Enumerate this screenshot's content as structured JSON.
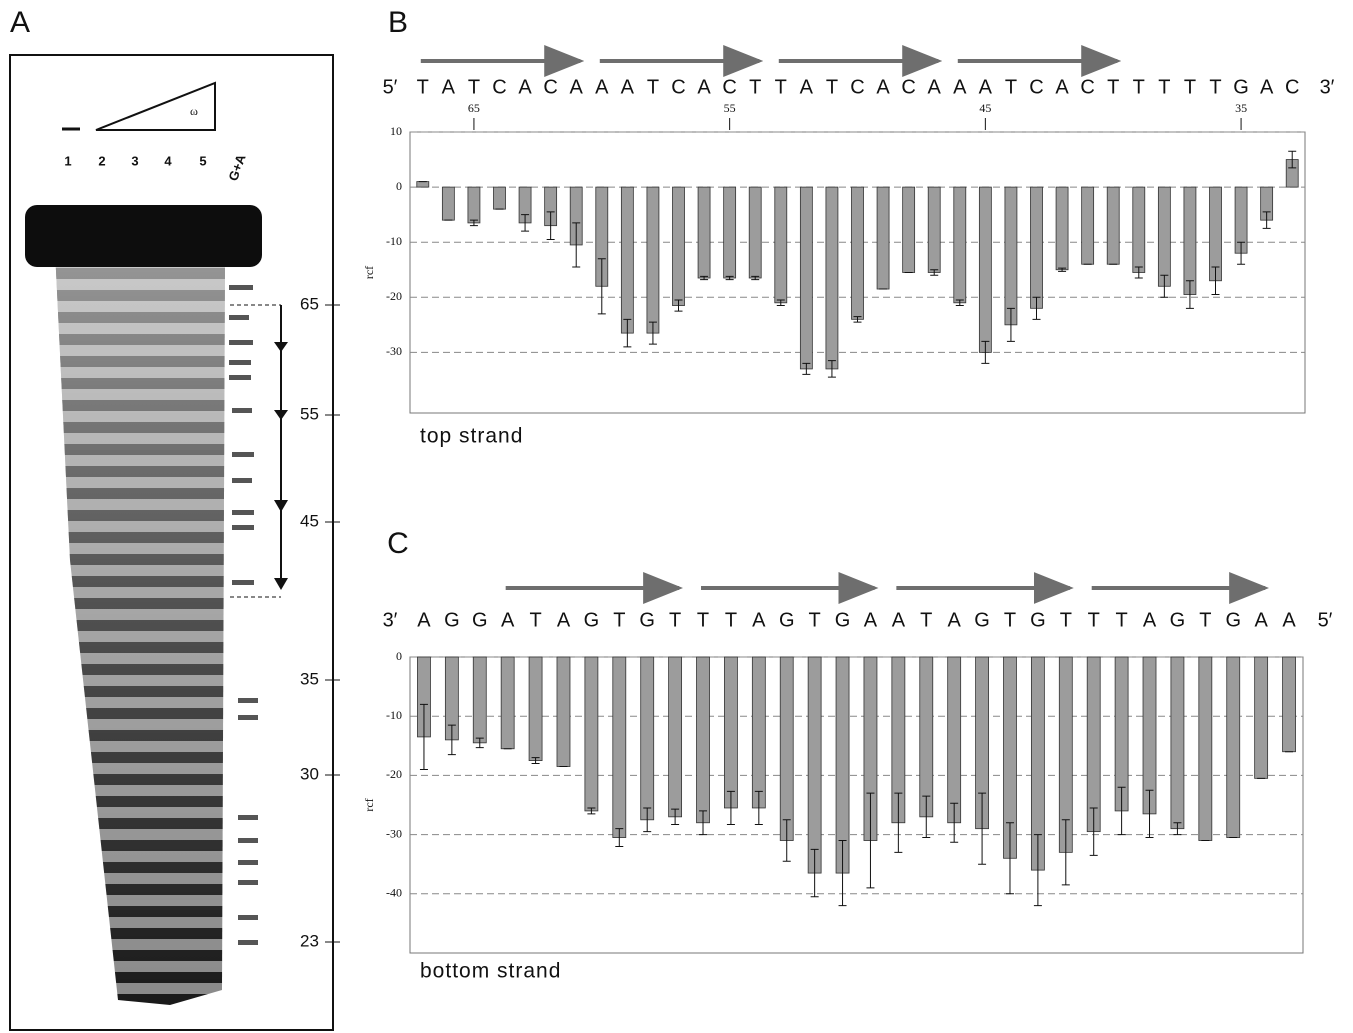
{
  "gel": {
    "panel": "A",
    "lanes": [
      "1",
      "2",
      "3",
      "4",
      "5",
      "G+A"
    ],
    "omega": "ω",
    "markers": [
      "65",
      "55",
      "45",
      "35",
      "30",
      "23"
    ]
  },
  "chart_data": [
    {
      "type": "bar",
      "panel": "B",
      "title": "top strand",
      "y_label": "rcf",
      "ends": [
        "5′",
        "3′"
      ],
      "categories": [
        "T",
        "A",
        "T",
        "C",
        "A",
        "C",
        "A",
        "A",
        "A",
        "T",
        "C",
        "A",
        "C",
        "T",
        "T",
        "A",
        "T",
        "C",
        "A",
        "C",
        "A",
        "A",
        "A",
        "T",
        "C",
        "A",
        "C",
        "T",
        "T",
        "T",
        "T",
        "T",
        "G",
        "A",
        "C"
      ],
      "x": [
        67,
        66,
        65,
        64,
        63,
        62,
        61,
        60,
        59,
        58,
        57,
        56,
        55,
        54,
        53,
        52,
        51,
        50,
        49,
        48,
        47,
        46,
        45,
        44,
        43,
        42,
        41,
        40,
        39,
        38,
        37,
        36,
        35,
        34,
        33
      ],
      "xlim": [
        67.5,
        32.5
      ],
      "xticks": [
        65,
        55,
        45,
        35
      ],
      "values": [
        1,
        -6,
        -6.5,
        -4,
        -6.5,
        -7,
        -10.5,
        -18,
        -26.5,
        -26.5,
        -21.5,
        -16.5,
        -16.5,
        -16.5,
        -21,
        -33,
        -33,
        -24,
        -18.5,
        -15.5,
        -15.5,
        -21,
        -30,
        -25,
        -22,
        -15,
        -14,
        -14,
        -15.5,
        -18,
        -19.5,
        -17,
        -12,
        -6,
        5
      ],
      "errors": [
        0,
        0,
        0.5,
        0,
        1.5,
        2.5,
        4,
        5,
        2.5,
        2,
        1,
        0.3,
        0.3,
        0.3,
        0.5,
        1,
        1.5,
        0.5,
        0,
        0,
        0.5,
        0.5,
        2,
        3,
        2,
        0.3,
        0,
        0,
        1,
        2,
        2.5,
        2.5,
        2,
        1.5,
        1.5
      ],
      "color": "#9c9c9c",
      "ylim": [
        -41,
        10
      ],
      "yticks": [
        10,
        0,
        -10,
        -20,
        -30
      ],
      "grid": true
    },
    {
      "type": "bar",
      "panel": "C",
      "title": "bottom strand",
      "y_label": "rcf",
      "ends": [
        "3′",
        "5′"
      ],
      "categories": [
        "A",
        "G",
        "G",
        "A",
        "T",
        "A",
        "G",
        "T",
        "G",
        "T",
        "T",
        "T",
        "A",
        "G",
        "T",
        "G",
        "A",
        "A",
        "T",
        "A",
        "G",
        "T",
        "G",
        "T",
        "T",
        "T",
        "A",
        "G",
        "T",
        "G",
        "A",
        "A"
      ],
      "values": [
        -13.5,
        -14,
        -14.5,
        -15.5,
        -17.5,
        -18.5,
        -26,
        -30.5,
        -27.5,
        -27,
        -28,
        -25.5,
        -25.5,
        -31,
        -36.5,
        -36.5,
        -31,
        -28,
        -27,
        -28,
        -29,
        -34,
        -36,
        -33,
        -29.5,
        -26,
        -26.5,
        -29,
        -31,
        -30.5,
        -20.5,
        -16
      ],
      "errors": [
        5.5,
        2.5,
        0.8,
        0,
        0.5,
        0,
        0.5,
        1.5,
        2,
        1.3,
        2,
        2.8,
        2.8,
        3.5,
        4,
        5.5,
        8,
        5,
        3.5,
        3.3,
        6,
        6,
        6,
        5.5,
        4,
        4,
        4,
        1,
        0,
        0,
        0,
        0
      ],
      "color": "#9c9c9c",
      "ylim": [
        -50,
        0
      ],
      "yticks": [
        0,
        -10,
        -20,
        -30,
        -40
      ],
      "grid": true
    }
  ]
}
